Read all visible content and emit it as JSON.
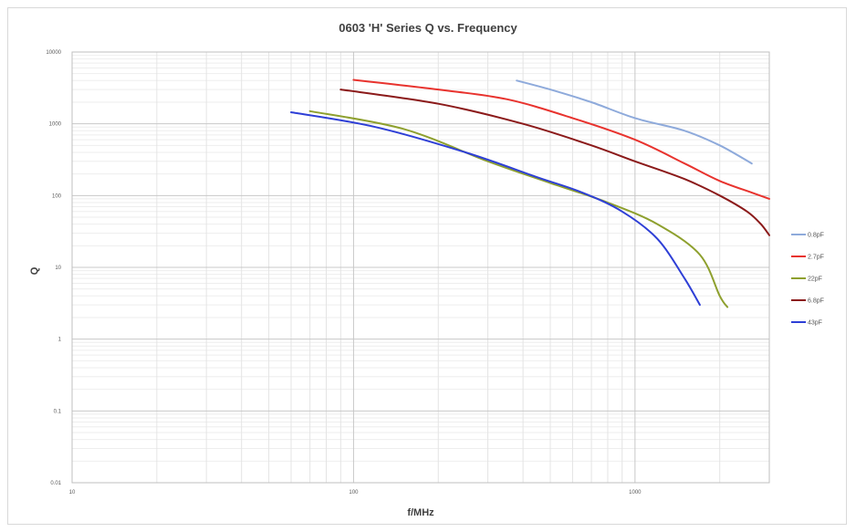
{
  "chart_data": {
    "type": "line",
    "title": "0603 'H' Series Q vs. Frequency",
    "xlabel": "f/MHz",
    "ylabel": "Q",
    "x_scale": "log",
    "y_scale": "log",
    "xlim": [
      10,
      3000
    ],
    "ylim": [
      0.01,
      10000
    ],
    "x_ticks": [
      "10",
      "100",
      "1000"
    ],
    "y_ticks": [
      "10000",
      "1000",
      "100",
      "10",
      "1",
      "0.1",
      "0.01"
    ],
    "grid": true,
    "legend_position": "right",
    "series": [
      {
        "name": "0.8pF",
        "color": "#8eaadb",
        "points": [
          [
            380,
            4000
          ],
          [
            500,
            3000
          ],
          [
            700,
            2000
          ],
          [
            1000,
            1200
          ],
          [
            1500,
            800
          ],
          [
            2000,
            500
          ],
          [
            2600,
            280
          ]
        ]
      },
      {
        "name": "2.7pF",
        "color": "#e8332e",
        "points": [
          [
            100,
            4100
          ],
          [
            200,
            3000
          ],
          [
            350,
            2200
          ],
          [
            600,
            1200
          ],
          [
            1000,
            600
          ],
          [
            1500,
            280
          ],
          [
            2000,
            160
          ],
          [
            2600,
            110
          ],
          [
            3000,
            90
          ]
        ]
      },
      {
        "name": "22pF",
        "color": "#8ea02e",
        "points": [
          [
            70,
            1500
          ],
          [
            150,
            850
          ],
          [
            300,
            300
          ],
          [
            500,
            150
          ],
          [
            800,
            80
          ],
          [
            1200,
            40
          ],
          [
            1700,
            15
          ],
          [
            2000,
            4
          ],
          [
            2130,
            2.8
          ]
        ]
      },
      {
        "name": "6.8pF",
        "color": "#8b1a1a",
        "points": [
          [
            90,
            3000
          ],
          [
            200,
            1900
          ],
          [
            400,
            1000
          ],
          [
            700,
            500
          ],
          [
            1000,
            300
          ],
          [
            1500,
            170
          ],
          [
            2000,
            100
          ],
          [
            2500,
            60
          ],
          [
            2800,
            40
          ],
          [
            3000,
            28
          ]
        ]
      },
      {
        "name": "43pF",
        "color": "#2e3fd6",
        "points": [
          [
            60,
            1450
          ],
          [
            120,
            900
          ],
          [
            250,
            400
          ],
          [
            450,
            180
          ],
          [
            650,
            110
          ],
          [
            900,
            60
          ],
          [
            1200,
            25
          ],
          [
            1500,
            7
          ],
          [
            1700,
            3
          ]
        ]
      }
    ]
  }
}
